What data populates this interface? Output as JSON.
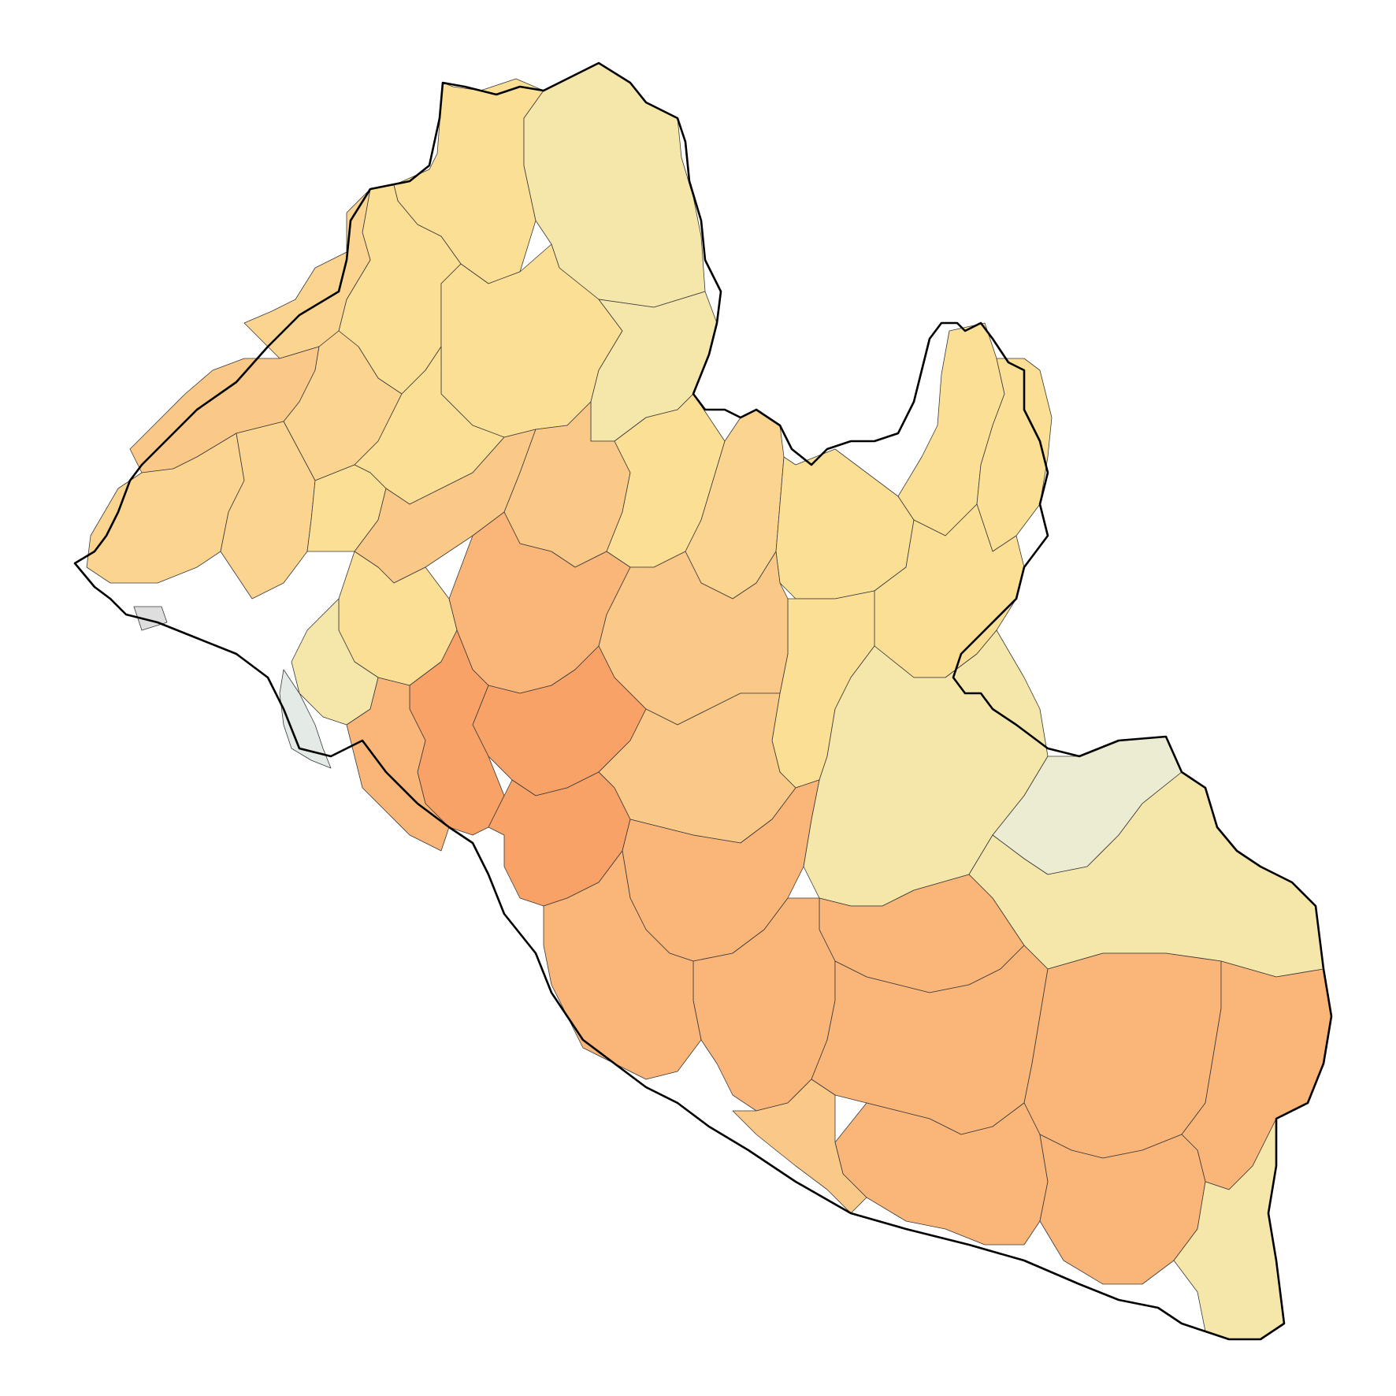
{
  "map": {
    "colors": {
      "light": "#f5e6aa",
      "yellow": "#fbdf95",
      "tan": "#fbd590",
      "peach": "#fbc987",
      "orange": "#fab578",
      "deep-orange": "#f9a267",
      "pale-green": "#ececd2",
      "blue-grey": "#e4ebe6",
      "no-data": "#dedede",
      "border": "#000000",
      "district-line": "#3a3a3a"
    },
    "legend": null
  }
}
